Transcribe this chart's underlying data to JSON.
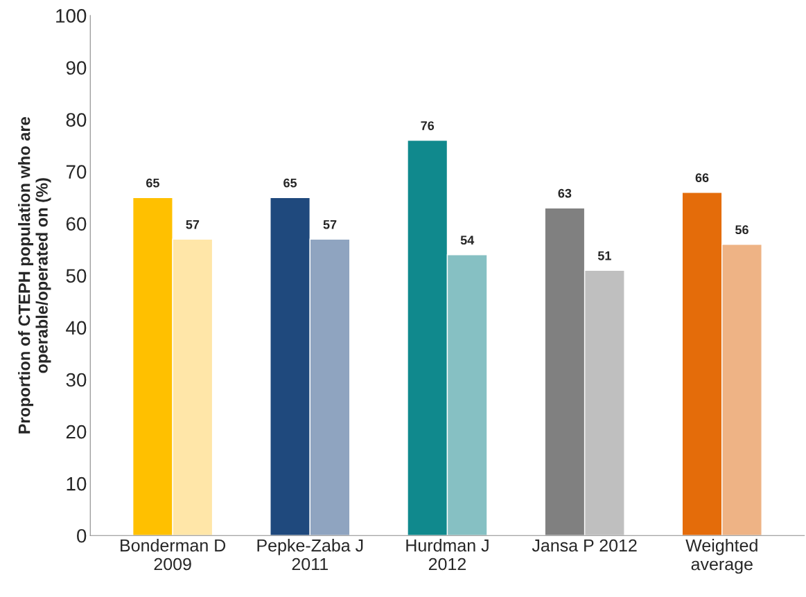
{
  "chart_data": {
    "type": "bar",
    "ylabel": "Proportion of CTEPH population who are\noperable/operated on (%)",
    "categories": [
      "Bonderman D\n2009",
      "Pepke-Zaba J\n2011",
      "Hurdman J\n2012",
      "Jansa P 2012",
      "Weighted\naverage"
    ],
    "series": [
      {
        "colors": [
          "#ffc000",
          "#1f497d",
          "#10898d",
          "#808080",
          "#e46c0a"
        ],
        "values": [
          65,
          65,
          76,
          63,
          66
        ]
      },
      {
        "colors": [
          "#ffe6a8",
          "#8fa4c0",
          "#86c0c3",
          "#bfbfbf",
          "#eeb385"
        ],
        "values": [
          57,
          57,
          54,
          51,
          56
        ]
      }
    ],
    "ylim": [
      0,
      100
    ],
    "yticks": [
      0,
      10,
      20,
      30,
      40,
      50,
      60,
      70,
      80,
      90,
      100
    ],
    "data_labels": true,
    "grid": false,
    "legend": false
  }
}
